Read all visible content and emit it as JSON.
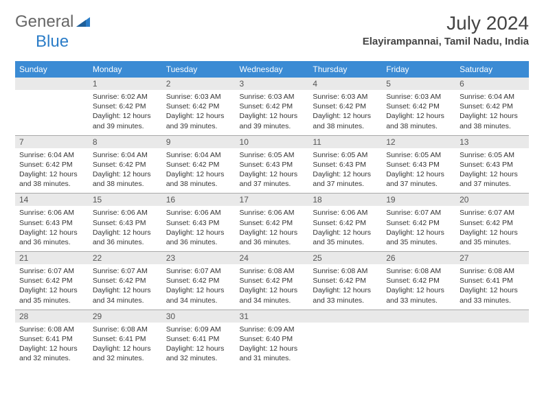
{
  "logo": {
    "text1": "General",
    "text2": "Blue"
  },
  "title": "July 2024",
  "location": "Elayirampannai, Tamil Nadu, India",
  "colors": {
    "header_bg": "#3b8bd4",
    "header_fg": "#ffffff",
    "daynum_bg": "#e9e9e9",
    "rule": "#a8a8a8",
    "text": "#333333",
    "logo_gray": "#666666",
    "logo_blue": "#2a7cc7"
  },
  "typography": {
    "title_fontsize": 28,
    "location_fontsize": 15,
    "dayhead_fontsize": 12,
    "body_fontsize": 10.5
  },
  "weekdays": [
    "Sunday",
    "Monday",
    "Tuesday",
    "Wednesday",
    "Thursday",
    "Friday",
    "Saturday"
  ],
  "first_weekday_index": 1,
  "days": [
    {
      "n": 1,
      "sunrise": "6:02 AM",
      "sunset": "6:42 PM",
      "daylight": "12 hours and 39 minutes."
    },
    {
      "n": 2,
      "sunrise": "6:03 AM",
      "sunset": "6:42 PM",
      "daylight": "12 hours and 39 minutes."
    },
    {
      "n": 3,
      "sunrise": "6:03 AM",
      "sunset": "6:42 PM",
      "daylight": "12 hours and 39 minutes."
    },
    {
      "n": 4,
      "sunrise": "6:03 AM",
      "sunset": "6:42 PM",
      "daylight": "12 hours and 38 minutes."
    },
    {
      "n": 5,
      "sunrise": "6:03 AM",
      "sunset": "6:42 PM",
      "daylight": "12 hours and 38 minutes."
    },
    {
      "n": 6,
      "sunrise": "6:04 AM",
      "sunset": "6:42 PM",
      "daylight": "12 hours and 38 minutes."
    },
    {
      "n": 7,
      "sunrise": "6:04 AM",
      "sunset": "6:42 PM",
      "daylight": "12 hours and 38 minutes."
    },
    {
      "n": 8,
      "sunrise": "6:04 AM",
      "sunset": "6:42 PM",
      "daylight": "12 hours and 38 minutes."
    },
    {
      "n": 9,
      "sunrise": "6:04 AM",
      "sunset": "6:42 PM",
      "daylight": "12 hours and 38 minutes."
    },
    {
      "n": 10,
      "sunrise": "6:05 AM",
      "sunset": "6:43 PM",
      "daylight": "12 hours and 37 minutes."
    },
    {
      "n": 11,
      "sunrise": "6:05 AM",
      "sunset": "6:43 PM",
      "daylight": "12 hours and 37 minutes."
    },
    {
      "n": 12,
      "sunrise": "6:05 AM",
      "sunset": "6:43 PM",
      "daylight": "12 hours and 37 minutes."
    },
    {
      "n": 13,
      "sunrise": "6:05 AM",
      "sunset": "6:43 PM",
      "daylight": "12 hours and 37 minutes."
    },
    {
      "n": 14,
      "sunrise": "6:06 AM",
      "sunset": "6:43 PM",
      "daylight": "12 hours and 36 minutes."
    },
    {
      "n": 15,
      "sunrise": "6:06 AM",
      "sunset": "6:43 PM",
      "daylight": "12 hours and 36 minutes."
    },
    {
      "n": 16,
      "sunrise": "6:06 AM",
      "sunset": "6:43 PM",
      "daylight": "12 hours and 36 minutes."
    },
    {
      "n": 17,
      "sunrise": "6:06 AM",
      "sunset": "6:42 PM",
      "daylight": "12 hours and 36 minutes."
    },
    {
      "n": 18,
      "sunrise": "6:06 AM",
      "sunset": "6:42 PM",
      "daylight": "12 hours and 35 minutes."
    },
    {
      "n": 19,
      "sunrise": "6:07 AM",
      "sunset": "6:42 PM",
      "daylight": "12 hours and 35 minutes."
    },
    {
      "n": 20,
      "sunrise": "6:07 AM",
      "sunset": "6:42 PM",
      "daylight": "12 hours and 35 minutes."
    },
    {
      "n": 21,
      "sunrise": "6:07 AM",
      "sunset": "6:42 PM",
      "daylight": "12 hours and 35 minutes."
    },
    {
      "n": 22,
      "sunrise": "6:07 AM",
      "sunset": "6:42 PM",
      "daylight": "12 hours and 34 minutes."
    },
    {
      "n": 23,
      "sunrise": "6:07 AM",
      "sunset": "6:42 PM",
      "daylight": "12 hours and 34 minutes."
    },
    {
      "n": 24,
      "sunrise": "6:08 AM",
      "sunset": "6:42 PM",
      "daylight": "12 hours and 34 minutes."
    },
    {
      "n": 25,
      "sunrise": "6:08 AM",
      "sunset": "6:42 PM",
      "daylight": "12 hours and 33 minutes."
    },
    {
      "n": 26,
      "sunrise": "6:08 AM",
      "sunset": "6:42 PM",
      "daylight": "12 hours and 33 minutes."
    },
    {
      "n": 27,
      "sunrise": "6:08 AM",
      "sunset": "6:41 PM",
      "daylight": "12 hours and 33 minutes."
    },
    {
      "n": 28,
      "sunrise": "6:08 AM",
      "sunset": "6:41 PM",
      "daylight": "12 hours and 32 minutes."
    },
    {
      "n": 29,
      "sunrise": "6:08 AM",
      "sunset": "6:41 PM",
      "daylight": "12 hours and 32 minutes."
    },
    {
      "n": 30,
      "sunrise": "6:09 AM",
      "sunset": "6:41 PM",
      "daylight": "12 hours and 32 minutes."
    },
    {
      "n": 31,
      "sunrise": "6:09 AM",
      "sunset": "6:40 PM",
      "daylight": "12 hours and 31 minutes."
    }
  ],
  "labels": {
    "sunrise": "Sunrise:",
    "sunset": "Sunset:",
    "daylight": "Daylight:"
  }
}
